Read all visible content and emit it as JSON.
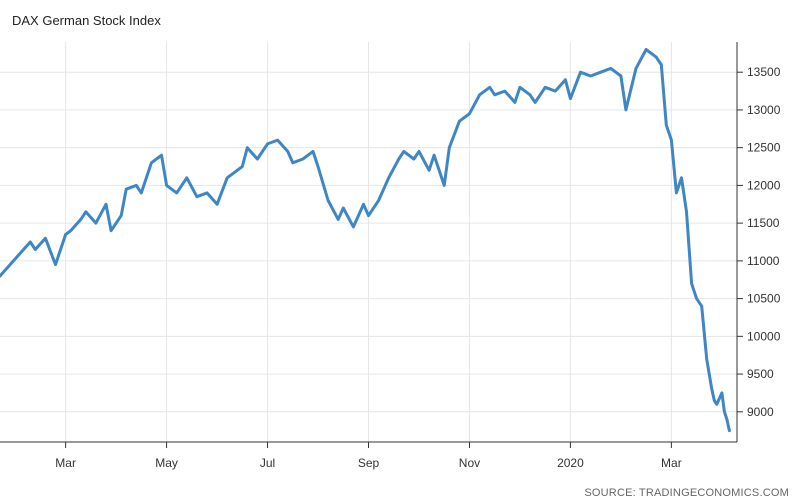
{
  "chart_data": {
    "type": "line",
    "title": "DAX German Stock Index",
    "source": "SOURCE: TRADINGECONOMICS.COM",
    "xlabel": "",
    "ylabel": "",
    "x_tick_labels": [
      "Mar",
      "May",
      "Jul",
      "Sep",
      "Nov",
      "2020",
      "Mar"
    ],
    "y_ticks": [
      9000,
      9500,
      10000,
      10500,
      11000,
      11500,
      12000,
      12500,
      13000,
      13500
    ],
    "ylim": [
      8600,
      13900
    ],
    "x_range_months": [
      0.7,
      15.3
    ],
    "grid": true,
    "series": [
      {
        "color": "#3f86c4",
        "x": [
          0.7,
          0.9,
          1.1,
          1.3,
          1.4,
          1.6,
          1.8,
          2.0,
          2.1,
          2.3,
          2.4,
          2.6,
          2.8,
          2.9,
          3.1,
          3.2,
          3.4,
          3.5,
          3.7,
          3.8,
          3.9,
          4.0,
          4.2,
          4.4,
          4.6,
          4.8,
          5.0,
          5.2,
          5.4,
          5.5,
          5.6,
          5.8,
          6.0,
          6.2,
          6.4,
          6.5,
          6.7,
          6.9,
          7.0,
          7.2,
          7.4,
          7.5,
          7.7,
          7.9,
          8.0,
          8.2,
          8.4,
          8.6,
          8.7,
          8.9,
          9.0,
          9.2,
          9.3,
          9.5,
          9.6,
          9.8,
          10.0,
          10.2,
          10.4,
          10.5,
          10.7,
          10.9,
          11.0,
          11.2,
          11.3,
          11.5,
          11.7,
          11.9,
          12.0,
          12.2,
          12.4,
          12.6,
          12.8,
          13.0,
          13.1,
          13.3,
          13.5,
          13.7,
          13.8,
          13.9,
          14.0,
          14.1,
          14.2,
          14.3,
          14.4,
          14.5,
          14.6,
          14.7,
          14.8,
          14.85,
          14.9,
          15.0,
          15.05,
          15.1,
          15.15
        ],
        "values": [
          10800,
          10950,
          11100,
          11250,
          11150,
          11300,
          10950,
          11350,
          11400,
          11550,
          11650,
          11500,
          11750,
          11400,
          11600,
          11950,
          12000,
          11900,
          12300,
          12350,
          12400,
          12000,
          11900,
          12100,
          11850,
          11900,
          11750,
          12100,
          12200,
          12250,
          12500,
          12350,
          12550,
          12600,
          12450,
          12300,
          12350,
          12450,
          12250,
          11800,
          11550,
          11700,
          11450,
          11750,
          11600,
          11800,
          12100,
          12350,
          12450,
          12350,
          12450,
          12200,
          12400,
          12000,
          12500,
          12850,
          12950,
          13200,
          13300,
          13200,
          13250,
          13100,
          13300,
          13200,
          13100,
          13300,
          13250,
          13400,
          13150,
          13500,
          13450,
          13500,
          13550,
          13450,
          13000,
          13550,
          13800,
          13700,
          13600,
          12800,
          12600,
          11900,
          12100,
          11650,
          10700,
          10500,
          10400,
          9700,
          9300,
          9150,
          9100,
          9250,
          9000,
          8900,
          8750
        ]
      }
    ]
  }
}
